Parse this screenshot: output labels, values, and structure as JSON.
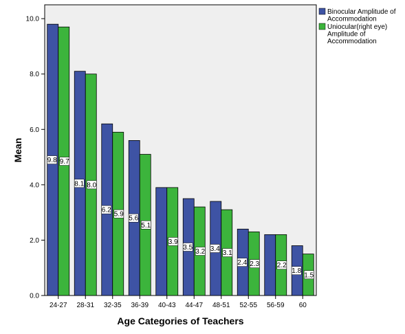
{
  "chart_data": {
    "type": "bar",
    "title": "",
    "xlabel": "Age Categories of Teachers",
    "ylabel": "Mean",
    "ylim": [
      0,
      10.5
    ],
    "yticks": [
      "0.0",
      "2.0",
      "4.0",
      "6.0",
      "8.0",
      "10.0"
    ],
    "grid": false,
    "legend_position": "top-right",
    "categories": [
      "24-27",
      "28-31",
      "32-35",
      "36-39",
      "40-43",
      "44-47",
      "48-51",
      "52-55",
      "56-59",
      "60"
    ],
    "series": [
      {
        "name": "Binocular Amplitude of Accommodation",
        "legend_lines": [
          "Binocular Amplitude of",
          "Accommodation"
        ],
        "color": "#3e53a4",
        "values": [
          9.8,
          8.1,
          6.2,
          5.6,
          3.9,
          3.5,
          3.4,
          2.4,
          2.2,
          1.8
        ],
        "labels": [
          "9.8",
          "8.1",
          "6.2",
          "5.6",
          "",
          "3.5",
          "3.4",
          "2.4",
          "",
          "1.8"
        ]
      },
      {
        "name": "Uniocular(right eye) Amplitude of Accommodation",
        "legend_lines": [
          "Uniocular(right eye)",
          "Amplitude of",
          "Accommodation"
        ],
        "color": "#3cb43c",
        "values": [
          9.7,
          8.0,
          5.9,
          5.1,
          3.9,
          3.2,
          3.1,
          2.3,
          2.2,
          1.5
        ],
        "labels": [
          "9.7",
          "8.0",
          "5.9",
          "5.1",
          "3.9",
          "3.2",
          "3.1",
          "2.3",
          "2.2",
          "1.5"
        ]
      }
    ]
  }
}
